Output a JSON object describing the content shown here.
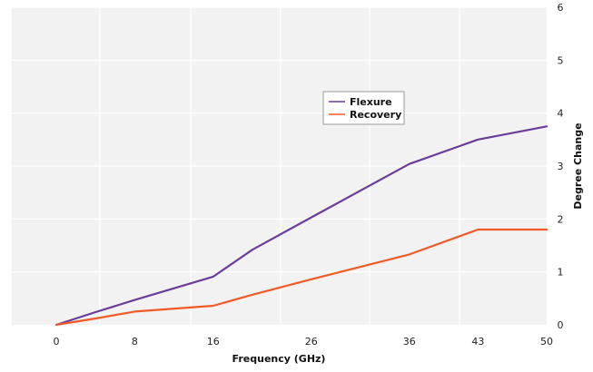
{
  "chart_data": {
    "type": "line",
    "title": "",
    "xlabel": "Frequency (GHz)",
    "ylabel": "Degree Change",
    "xlim": [
      0,
      50
    ],
    "ylim": [
      0,
      6
    ],
    "x_ticks": [
      0,
      8,
      16,
      26,
      36,
      43,
      50
    ],
    "x_tick_labels": [
      "0",
      "8",
      "16",
      "26",
      "36",
      "43",
      "50"
    ],
    "y_ticks": [
      0,
      1,
      2,
      3,
      4,
      5,
      6
    ],
    "y_tick_labels": [
      "0",
      "1",
      "2",
      "3",
      "4",
      "5",
      "6"
    ],
    "grid": true,
    "y_axis_side": "right",
    "legend_position": "center-right",
    "plot_background": "#f2f2f2",
    "grid_color": "#ffffff",
    "series": [
      {
        "name": "Flexure",
        "color": "#6a3d9a",
        "x": [
          0,
          4,
          8,
          16,
          20,
          26,
          36,
          43,
          50
        ],
        "y": [
          0,
          0.24,
          0.47,
          0.91,
          1.42,
          2.03,
          3.04,
          3.5,
          3.75
        ]
      },
      {
        "name": "Recovery",
        "color": "#f05a28",
        "x": [
          0,
          4,
          8,
          16,
          20,
          26,
          36,
          43,
          50
        ],
        "y": [
          0,
          0.12,
          0.25,
          0.36,
          0.57,
          0.86,
          1.33,
          1.8,
          1.8
        ]
      }
    ]
  }
}
